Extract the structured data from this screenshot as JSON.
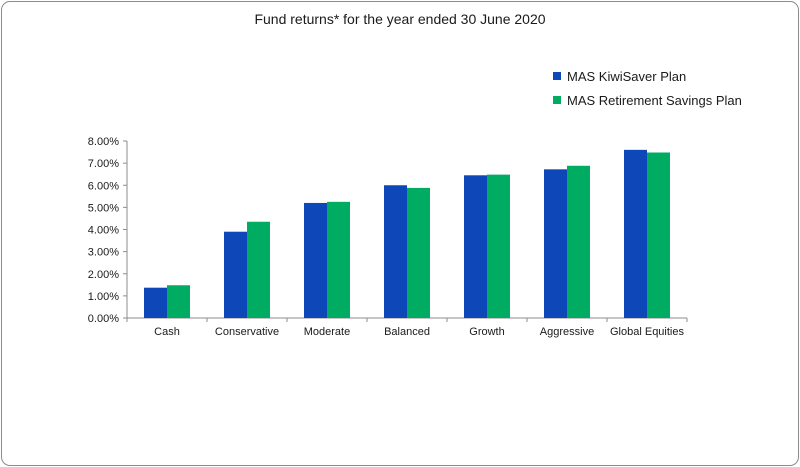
{
  "colors": {
    "series1": "#0e48b8",
    "series2": "#00ab62",
    "axis": "#8c8c8c"
  },
  "chart_data": {
    "type": "bar",
    "title": "Fund returns* for the year ended 30 June 2020",
    "xlabel": "",
    "ylabel": "",
    "categories": [
      "Cash",
      "Conservative",
      "Moderate",
      "Balanced",
      "Growth",
      "Aggressive",
      "Global Equities"
    ],
    "series": [
      {
        "name": "MAS KiwiSaver Plan",
        "values": [
          1.37,
          3.9,
          5.2,
          6.0,
          6.45,
          6.72,
          7.6
        ]
      },
      {
        "name": "MAS Retirement Savings Plan",
        "values": [
          1.48,
          4.35,
          5.25,
          5.88,
          6.48,
          6.88,
          7.48
        ]
      }
    ],
    "ylim": [
      0,
      8
    ],
    "yticks": [
      "0.00%",
      "1.00%",
      "2.00%",
      "3.00%",
      "4.00%",
      "5.00%",
      "6.00%",
      "7.00%",
      "8.00%"
    ],
    "grid": false,
    "legend_position": "top-right"
  }
}
